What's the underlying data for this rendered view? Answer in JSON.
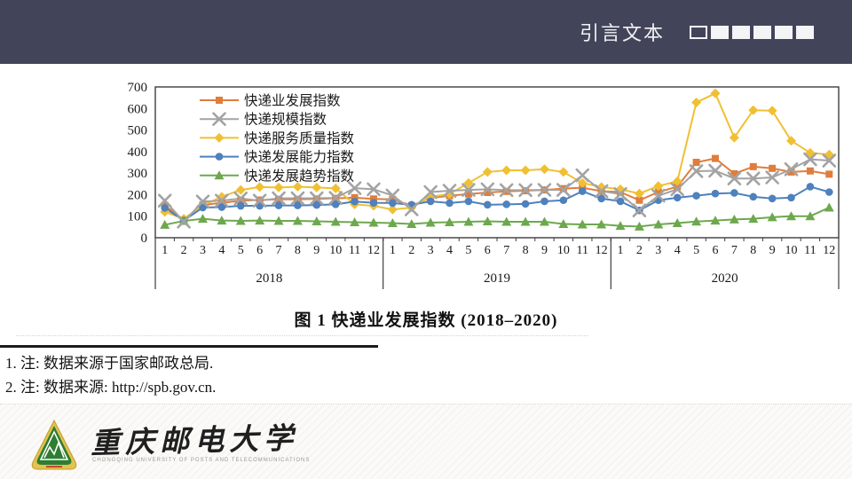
{
  "header": {
    "title": "引言文本",
    "squares": {
      "count": 6,
      "first_hollow": true
    },
    "bg_color": "#42455a"
  },
  "chart_data": {
    "type": "line",
    "title": "",
    "ylim": [
      0,
      700
    ],
    "y_ticks": [
      0,
      100,
      200,
      300,
      400,
      500,
      600,
      700
    ],
    "month_labels": [
      "1",
      "2",
      "3",
      "4",
      "5",
      "6",
      "7",
      "8",
      "9",
      "10",
      "11",
      "12"
    ],
    "years": [
      "2018",
      "2019",
      "2020"
    ],
    "grid": false,
    "legend_position": "top-left-inside",
    "series": [
      {
        "name": "快递业发展指数",
        "color": "#e07d3c",
        "marker": "square",
        "values": [
          150,
          82,
          152,
          162,
          172,
          175,
          178,
          178,
          180,
          183,
          186,
          180,
          178,
          148,
          185,
          195,
          203,
          210,
          215,
          218,
          222,
          228,
          232,
          216,
          212,
          174,
          212,
          237,
          350,
          368,
          297,
          330,
          322,
          305,
          310,
          295
        ]
      },
      {
        "name": "快递规模指数",
        "color": "#a3a3a3",
        "marker": "x",
        "values": [
          172,
          75,
          168,
          172,
          182,
          172,
          183,
          183,
          183,
          185,
          230,
          225,
          196,
          132,
          212,
          218,
          222,
          225,
          221,
          221,
          222,
          222,
          290,
          216,
          203,
          127,
          195,
          225,
          309,
          311,
          275,
          275,
          280,
          318,
          364,
          358
        ]
      },
      {
        "name": "快递服务质量指数",
        "color": "#f0c033",
        "marker": "diamond",
        "values": [
          120,
          88,
          150,
          190,
          222,
          235,
          233,
          237,
          233,
          229,
          155,
          148,
          131,
          140,
          190,
          203,
          254,
          305,
          313,
          313,
          318,
          305,
          254,
          235,
          225,
          205,
          240,
          262,
          628,
          670,
          465,
          592,
          590,
          450,
          394,
          386
        ]
      },
      {
        "name": "快递发展能力指数",
        "color": "#4e81bd",
        "marker": "circle",
        "values": [
          138,
          80,
          140,
          142,
          148,
          148,
          150,
          150,
          152,
          155,
          168,
          162,
          161,
          153,
          169,
          161,
          169,
          153,
          155,
          157,
          169,
          174,
          216,
          182,
          169,
          127,
          174,
          186,
          195,
          205,
          208,
          190,
          182,
          186,
          237,
          212
        ]
      },
      {
        "name": "快递发展趋势指数",
        "color": "#6da84e",
        "marker": "triangle",
        "values": [
          60,
          78,
          88,
          80,
          78,
          80,
          78,
          78,
          76,
          74,
          72,
          70,
          68,
          64,
          70,
          72,
          74,
          76,
          74,
          74,
          74,
          64,
          62,
          62,
          55,
          52,
          62,
          68,
          75,
          80,
          85,
          88,
          95,
          100,
          100,
          140
        ]
      }
    ]
  },
  "caption": "图 1  快递业发展指数 (2018–2020)",
  "notes": [
    "1. 注: 数据来源于国家邮政总局.",
    "2. 注: 数据来源: http://spb.gov.cn."
  ],
  "footer": {
    "university_cn": "重庆邮电大学",
    "university_en": "CHONGQING UNIVERSITY OF POSTS AND TELECOMMUNICATIONS"
  }
}
